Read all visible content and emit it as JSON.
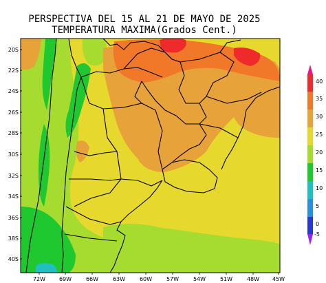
{
  "title": {
    "line1": "PERSPECTIVA DEL 15 AL 21 DE MAYO DE 2025",
    "line2": "TEMPERATURA MAXIMA(Grados Cent.)"
  },
  "axes": {
    "lat_labels": [
      "20S",
      "22S",
      "24S",
      "26S",
      "28S",
      "30S",
      "32S",
      "34S",
      "36S",
      "38S",
      "40S"
    ],
    "lon_labels": [
      "72W",
      "69W",
      "66W",
      "63W",
      "60W",
      "57W",
      "54W",
      "51W",
      "48W",
      "45W"
    ]
  },
  "legend": {
    "ticks": [
      "40",
      "35",
      "30",
      "25",
      "20",
      "15",
      "10",
      "5",
      "0",
      "-5"
    ],
    "colors": {
      "c40": "#e8168c",
      "c35": "#ee2a2a",
      "c30": "#f07828",
      "c25": "#e8a23a",
      "c20": "#e6d82c",
      "c15": "#a6dc30",
      "c10": "#20c830",
      "c5": "#20c0c0",
      "c0": "#2890e0",
      "cm5": "#2838d8",
      "cmin": "#a020f0"
    }
  },
  "map_colors": {
    "ocean": "#e6d82c",
    "yellow": "#e6d82c",
    "lightgreen": "#a6dc30",
    "green": "#20c830",
    "cyan": "#20c0c0",
    "tan": "#e8a23a",
    "orange": "#f07828",
    "red": "#ee2a2a"
  }
}
